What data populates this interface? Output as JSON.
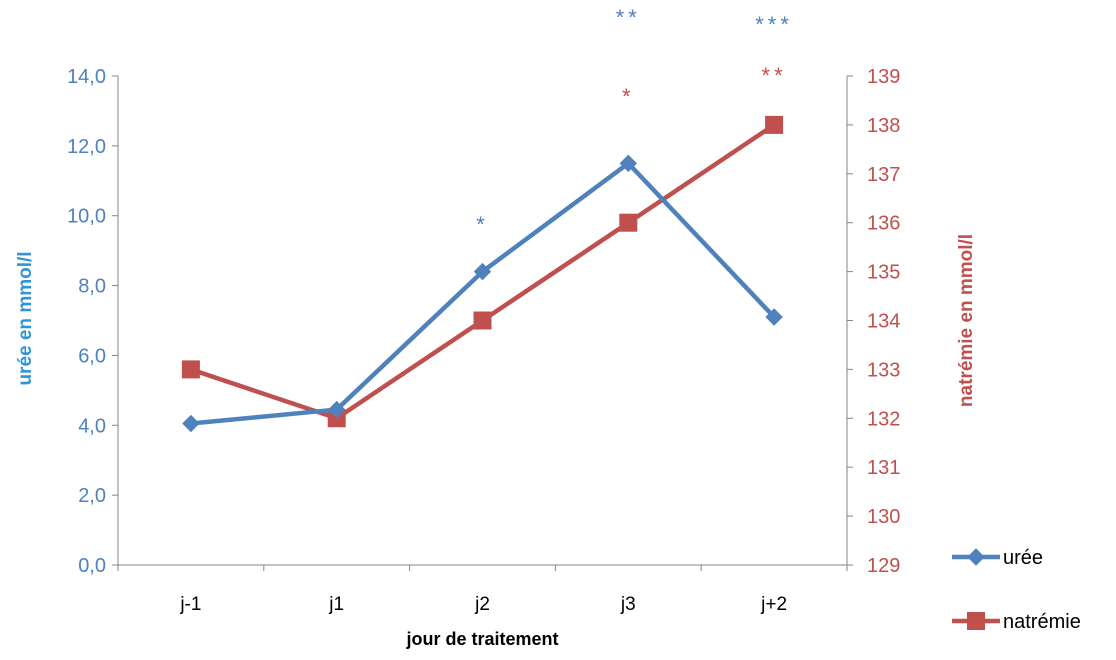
{
  "chart_data": {
    "type": "line",
    "xlabel": "jour de traitement",
    "categories": [
      "j-1",
      "j1",
      "j2",
      "j3",
      "j+2"
    ],
    "y_left": {
      "label": "urée en mmol/l",
      "range": [
        0,
        14
      ],
      "ticks": [
        0,
        2,
        4,
        6,
        8,
        10,
        12,
        14
      ],
      "tick_labels": [
        "0,0",
        "2,0",
        "4,0",
        "6,0",
        "8,0",
        "10,0",
        "12,0",
        "14,0"
      ],
      "color": "#4f81bd"
    },
    "y_right": {
      "label": "natrémie en mmol/l",
      "range": [
        129,
        139
      ],
      "ticks": [
        129,
        130,
        131,
        132,
        133,
        134,
        135,
        136,
        137,
        138,
        139
      ],
      "tick_labels": [
        "129",
        "130",
        "131",
        "132",
        "133",
        "134",
        "135",
        "136",
        "137",
        "138",
        "139"
      ],
      "color": "#c0504d"
    },
    "series": [
      {
        "name": "urée",
        "axis": "left",
        "marker": "diamond",
        "color": "#4f81bd",
        "values": [
          4.05,
          4.45,
          8.4,
          11.5,
          7.1
        ],
        "significance": [
          "",
          "",
          "*",
          "**",
          "***"
        ]
      },
      {
        "name": "natrémie",
        "axis": "right",
        "marker": "square",
        "color": "#c0504d",
        "values": [
          133,
          132,
          134,
          136,
          138
        ],
        "significance": [
          "",
          "",
          "",
          "*",
          "**"
        ]
      }
    ],
    "legend_position": "bottom-right",
    "grid": false
  }
}
